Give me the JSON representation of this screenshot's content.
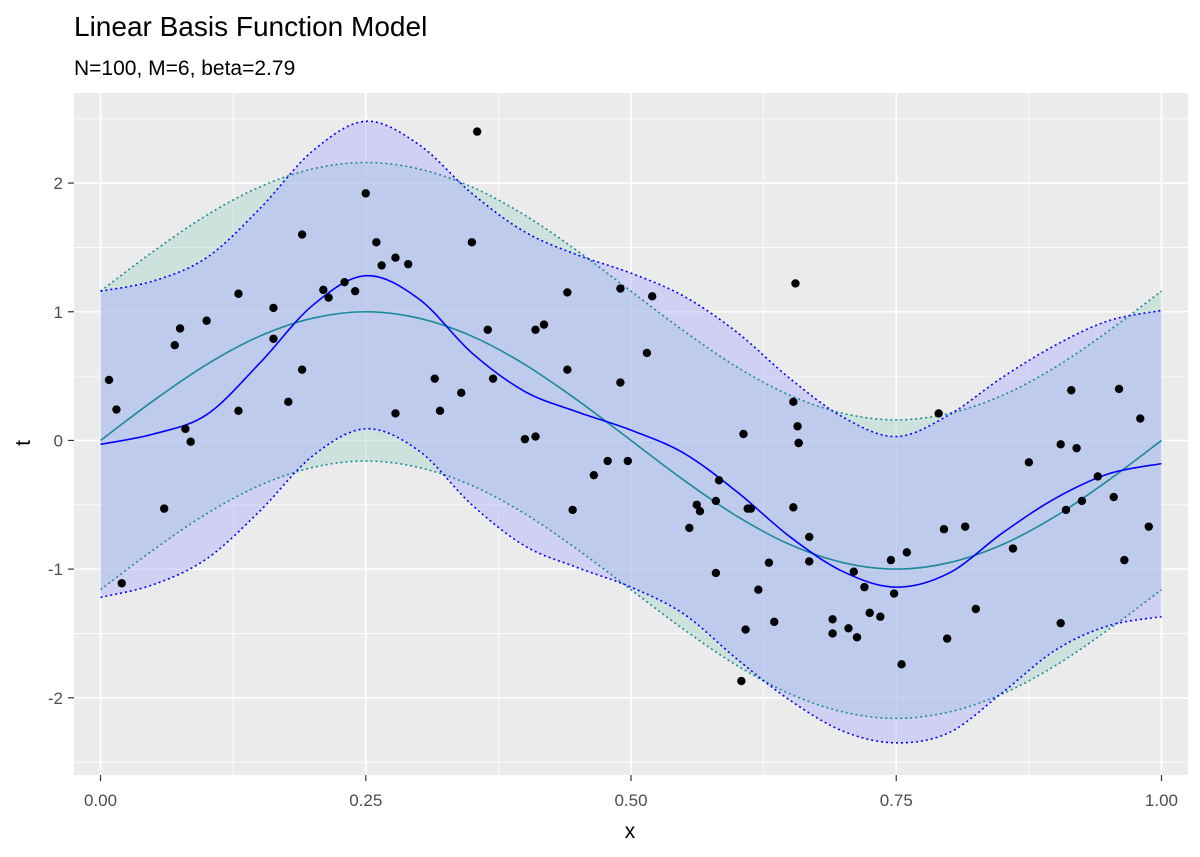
{
  "chart_data": {
    "type": "line",
    "title": "Linear Basis Function Model",
    "subtitle": "N=100, M=6, beta=2.79",
    "xlabel": "x",
    "ylabel": "t",
    "xlim": [
      -0.025,
      1.025
    ],
    "ylim": [
      -2.6,
      2.7
    ],
    "x_ticks": [
      0,
      0.25,
      0.5,
      0.75,
      1
    ],
    "x_tick_labels": [
      "0.00",
      "0.25",
      "0.50",
      "0.75",
      "1.00"
    ],
    "y_ticks": [
      -2,
      -1,
      0,
      1,
      2
    ],
    "y_tick_labels": [
      "-2",
      "-1",
      "0",
      "1",
      "2"
    ],
    "grid": true,
    "legend": "none",
    "colors": {
      "panel": "#ebebeb",
      "grid": "#ffffff",
      "true_line": "#1a8a9a",
      "true_band": "#a8d8cc",
      "pred_line": "#0000ff",
      "pred_band": "#b0b0ff",
      "points": "#000000"
    },
    "true_function": {
      "x": [
        0,
        0.05,
        0.1,
        0.15,
        0.2,
        0.25,
        0.3,
        0.35,
        0.4,
        0.45,
        0.5,
        0.55,
        0.6,
        0.65,
        0.7,
        0.75,
        0.8,
        0.85,
        0.9,
        0.95,
        1.0
      ],
      "mean": [
        0,
        0.31,
        0.59,
        0.81,
        0.95,
        1.0,
        0.95,
        0.81,
        0.59,
        0.31,
        0,
        -0.31,
        -0.59,
        -0.81,
        -0.95,
        -1.0,
        -0.95,
        -0.81,
        -0.59,
        -0.31,
        0
      ],
      "lower": [
        -1.16,
        -0.85,
        -0.57,
        -0.35,
        -0.21,
        -0.16,
        -0.21,
        -0.35,
        -0.57,
        -0.85,
        -1.16,
        -1.47,
        -1.75,
        -1.97,
        -2.11,
        -2.16,
        -2.11,
        -1.97,
        -1.75,
        -1.47,
        -1.16
      ],
      "upper": [
        1.16,
        1.47,
        1.75,
        1.97,
        2.11,
        2.16,
        2.11,
        1.97,
        1.75,
        1.47,
        1.16,
        0.85,
        0.57,
        0.35,
        0.21,
        0.16,
        0.21,
        0.35,
        0.57,
        0.85,
        1.16
      ]
    },
    "predictive": {
      "x": [
        0,
        0.05,
        0.1,
        0.15,
        0.2,
        0.25,
        0.3,
        0.35,
        0.4,
        0.45,
        0.5,
        0.55,
        0.6,
        0.65,
        0.7,
        0.75,
        0.8,
        0.85,
        0.9,
        0.95,
        1.0
      ],
      "mean": [
        -0.03,
        0.05,
        0.2,
        0.6,
        1.05,
        1.28,
        1.1,
        0.68,
        0.38,
        0.22,
        0.08,
        -0.1,
        -0.4,
        -0.75,
        -1.02,
        -1.14,
        -1.03,
        -0.72,
        -0.45,
        -0.26,
        -0.18
      ],
      "lower": [
        -1.22,
        -1.12,
        -0.92,
        -0.55,
        -0.12,
        0.09,
        -0.08,
        -0.5,
        -0.82,
        -0.99,
        -1.14,
        -1.35,
        -1.7,
        -2.02,
        -2.26,
        -2.35,
        -2.27,
        -1.96,
        -1.63,
        -1.44,
        -1.37
      ],
      "upper": [
        1.16,
        1.24,
        1.42,
        1.8,
        2.25,
        2.48,
        2.3,
        1.92,
        1.62,
        1.44,
        1.3,
        1.12,
        0.84,
        0.48,
        0.18,
        0.03,
        0.2,
        0.49,
        0.74,
        0.93,
        1.01
      ]
    },
    "points": {
      "x": [
        0.008,
        0.015,
        0.02,
        0.06,
        0.07,
        0.075,
        0.08,
        0.085,
        0.1,
        0.13,
        0.13,
        0.163,
        0.163,
        0.177,
        0.19,
        0.19,
        0.21,
        0.215,
        0.23,
        0.24,
        0.25,
        0.26,
        0.265,
        0.278,
        0.278,
        0.29,
        0.315,
        0.32,
        0.34,
        0.35,
        0.355,
        0.365,
        0.37,
        0.4,
        0.41,
        0.41,
        0.418,
        0.44,
        0.44,
        0.445,
        0.465,
        0.478,
        0.49,
        0.49,
        0.497,
        0.515,
        0.52,
        0.555,
        0.562,
        0.565,
        0.58,
        0.58,
        0.583,
        0.604,
        0.606,
        0.608,
        0.61,
        0.613,
        0.62,
        0.63,
        0.635,
        0.653,
        0.653,
        0.655,
        0.657,
        0.658,
        0.658,
        0.668,
        0.668,
        0.69,
        0.69,
        0.705,
        0.71,
        0.713,
        0.72,
        0.725,
        0.735,
        0.745,
        0.748,
        0.755,
        0.76,
        0.79,
        0.795,
        0.798,
        0.815,
        0.825,
        0.86,
        0.875,
        0.905,
        0.905,
        0.91,
        0.915,
        0.92,
        0.925,
        0.94,
        0.955,
        0.96,
        0.965,
        0.98,
        0.988
      ],
      "y": [
        0.47,
        0.24,
        -1.11,
        -0.53,
        0.74,
        0.87,
        0.09,
        -0.01,
        0.93,
        0.23,
        1.14,
        1.03,
        0.79,
        0.3,
        0.55,
        1.6,
        1.17,
        1.11,
        1.23,
        1.16,
        1.92,
        1.54,
        1.36,
        1.42,
        0.21,
        1.37,
        0.48,
        0.23,
        0.37,
        1.54,
        2.4,
        0.86,
        0.48,
        0.01,
        0.86,
        0.03,
        0.9,
        0.55,
        1.15,
        -0.54,
        -0.27,
        -0.16,
        0.45,
        1.18,
        -0.16,
        0.68,
        1.12,
        -0.68,
        -0.5,
        -0.55,
        -1.03,
        -0.47,
        -0.31,
        -1.87,
        0.05,
        -1.47,
        -0.53,
        -0.53,
        -1.16,
        -0.95,
        -1.41,
        -0.52,
        0.3,
        1.22,
        0.11,
        -0.02,
        -0.02,
        -0.75,
        -0.94,
        -1.5,
        -1.39,
        -1.46,
        -1.02,
        -1.53,
        -1.14,
        -1.34,
        -1.37,
        -0.93,
        -1.19,
        -1.74,
        -0.87,
        0.21,
        -0.69,
        -1.54,
        -0.67,
        -1.31,
        -0.84,
        -0.17,
        -0.03,
        -1.42,
        -0.54,
        0.39,
        -0.06,
        -0.47,
        -0.28,
        -0.44,
        0.4,
        -0.93,
        0.17,
        -0.67
      ]
    }
  }
}
